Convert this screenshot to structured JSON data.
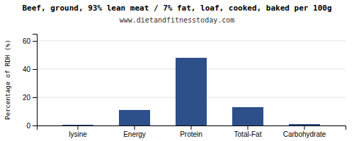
{
  "chart_data": {
    "type": "bar",
    "title": "Beef, ground, 93% lean meat / 7% fat, loaf, cooked, baked per 100g",
    "subtitle": "www.dietandfitnesstoday.com",
    "categories": [
      "lysine",
      "Energy",
      "Protein",
      "Total-Fat",
      "Carbohydrate"
    ],
    "values": [
      0.5,
      11,
      48,
      13,
      1
    ],
    "color": "#2d4f8a",
    "ylabel": "Percentage of RDH (%)",
    "ylim": [
      0,
      65
    ],
    "yticks": [
      0,
      20,
      40,
      60
    ],
    "grid": true
  }
}
